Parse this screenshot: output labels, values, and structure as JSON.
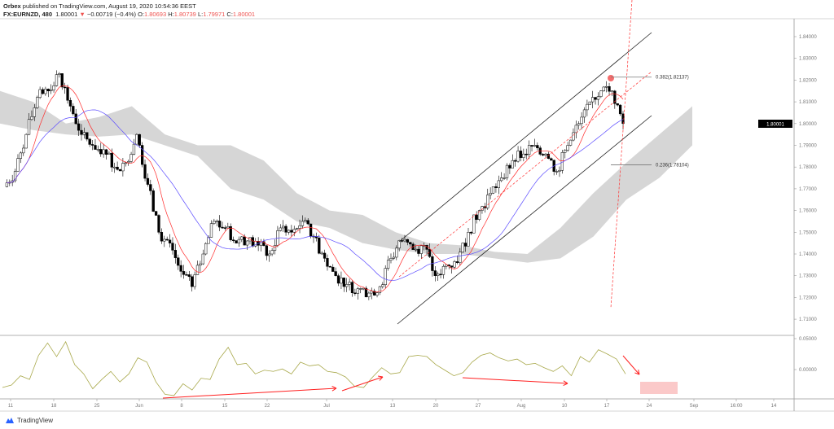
{
  "header": {
    "publisher": "Orbex",
    "published_text": "published on TradingView.com, August 19, 2020 10:54:36 EEST",
    "symbol": "FX:EURNZD, 480",
    "last": "1.80001",
    "change": "−0.00719 (−0.4%)",
    "open_label": "O:",
    "open": "1.80693",
    "high_label": "H:",
    "high": "1.80739",
    "low_label": "L:",
    "low": "1.79971",
    "close_label": "C:",
    "close": "1.80001",
    "down_arrow_icon": "triangle-down"
  },
  "colors": {
    "up_candle": "#ffffff",
    "down_candle": "#000000",
    "conversion_line": "#ff2a2a",
    "base_line": "#5b4bff",
    "cloud": "#d6d6d6",
    "oscillator": "#a8a84a",
    "annotation": "#ff2020",
    "price_label_bg": "#000000"
  },
  "chart_data": [
    {
      "type": "candlestick",
      "price_axis_ticks": [
        "1.84000",
        "1.83000",
        "1.82000",
        "1.81000",
        "1.80000",
        "1.79000",
        "1.78000",
        "1.77000",
        "1.76000",
        "1.75000",
        "1.74000",
        "1.73000",
        "1.72000",
        "1.71000"
      ],
      "ylim": [
        1.7065,
        1.8475
      ],
      "time_axis_ticks": [
        "11",
        "18",
        "25",
        "Jun",
        "8",
        "15",
        "22",
        "Jul",
        "13",
        "20",
        "27",
        "Aug",
        "10",
        "17",
        "24",
        "Sep",
        "16:00",
        "14"
      ],
      "current_price_label": "1.80001",
      "closes": [
        1.771,
        1.778,
        1.795,
        1.812,
        1.815,
        1.823,
        1.808,
        1.795,
        1.79,
        1.788,
        1.78,
        1.782,
        1.795,
        1.772,
        1.75,
        1.745,
        1.732,
        1.725,
        1.74,
        1.755,
        1.752,
        1.745,
        1.746,
        1.744,
        1.74,
        1.752,
        1.75,
        1.755,
        1.748,
        1.738,
        1.73,
        1.726,
        1.724,
        1.722,
        1.725,
        1.738,
        1.746,
        1.742,
        1.744,
        1.73,
        1.735,
        1.736,
        1.75,
        1.76,
        1.768,
        1.775,
        1.783,
        1.786,
        1.79,
        1.786,
        1.778,
        1.79,
        1.8,
        1.81,
        1.815,
        1.815,
        1.8
      ],
      "cloud_upper": [
        1.815,
        1.81,
        1.8,
        1.803,
        1.808,
        1.795,
        1.79,
        1.79,
        1.783,
        1.768,
        1.76,
        1.758,
        1.75,
        1.745,
        1.744,
        1.741,
        1.74,
        1.752,
        1.768,
        1.782,
        1.795,
        1.808
      ],
      "cloud_lower": [
        1.8,
        1.797,
        1.795,
        1.794,
        1.795,
        1.79,
        1.785,
        1.77,
        1.765,
        1.755,
        1.752,
        1.745,
        1.742,
        1.74,
        1.74,
        1.738,
        1.736,
        1.738,
        1.748,
        1.765,
        1.775,
        1.79
      ],
      "fibonacci": [
        {
          "label": "0.382(1.82137)",
          "price": 1.82137
        },
        {
          "label": "0.236(1.78104)",
          "price": 1.78104
        }
      ]
    },
    {
      "type": "line",
      "oscillator_axis_ticks": [
        "0.05000",
        "0.00000"
      ],
      "values": [
        -0.029,
        -0.025,
        -0.01,
        -0.016,
        0.023,
        0.043,
        0.021,
        0.045,
        0.008,
        -0.007,
        -0.031,
        -0.016,
        -0.003,
        -0.02,
        -0.007,
        0.019,
        0.012,
        -0.02,
        -0.04,
        -0.042,
        -0.023,
        -0.033,
        -0.014,
        -0.016,
        0.017,
        0.036,
        0.008,
        0.01,
        -0.007,
        -0.001,
        -0.003,
        0.001,
        -0.007,
        0.012,
        0.006,
        0.008,
        -0.003,
        -0.005,
        -0.012,
        -0.027,
        -0.029,
        -0.012,
        0.003,
        -0.007,
        -0.005,
        0.021,
        0.023,
        0.021,
        0.008,
        -0.001,
        -0.01,
        -0.005,
        0.012,
        0.023,
        0.027,
        0.019,
        0.014,
        0.017,
        0.008,
        0.01,
        0.003,
        -0.003,
        0.006,
        -0.01,
        0.021,
        0.012,
        0.032,
        0.025,
        0.017,
        -0.007
      ]
    }
  ],
  "footer": {
    "brand": "TradingView"
  }
}
